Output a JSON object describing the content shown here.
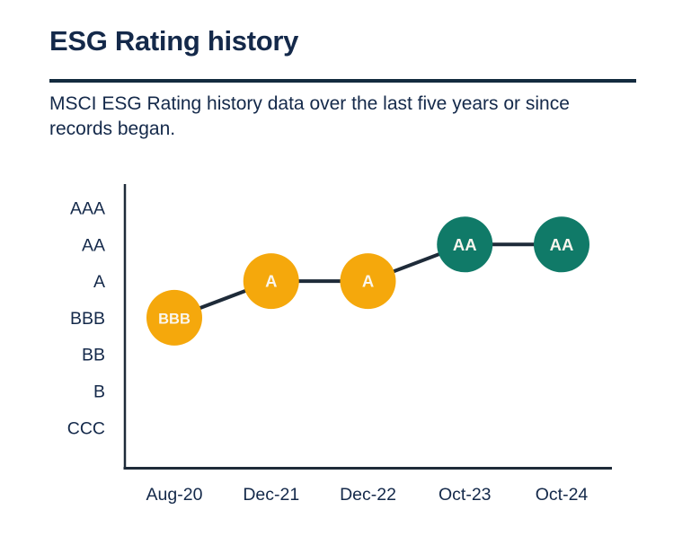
{
  "page": {
    "title": "ESG Rating history",
    "subtitle": "MSCI ESG Rating history data over the last five years or since records began."
  },
  "colors": {
    "background": "#FFFFFF",
    "text_navy": "#14294A",
    "divider_navy": "#132B3F",
    "chart_line_navy": "#1E2B39",
    "amber": "#F5A80C",
    "teal": "#107A68",
    "marker_text": "#FAF6EE"
  },
  "chart_data": {
    "type": "line",
    "title": "ESG Rating history",
    "xlabel": "",
    "ylabel": "",
    "grid": false,
    "legend": false,
    "y_categories_top_to_bottom": [
      "AAA",
      "AA",
      "A",
      "BBB",
      "BB",
      "B",
      "CCC"
    ],
    "x_categories": [
      "Aug-20",
      "Dec-21",
      "Dec-22",
      "Oct-23",
      "Oct-24"
    ],
    "points": [
      {
        "date": "Aug-20",
        "rating": "BBB",
        "color": "amber"
      },
      {
        "date": "Dec-21",
        "rating": "A",
        "color": "amber"
      },
      {
        "date": "Dec-22",
        "rating": "A",
        "color": "amber"
      },
      {
        "date": "Oct-23",
        "rating": "AA",
        "color": "teal"
      },
      {
        "date": "Oct-24",
        "rating": "AA",
        "color": "teal"
      }
    ]
  }
}
